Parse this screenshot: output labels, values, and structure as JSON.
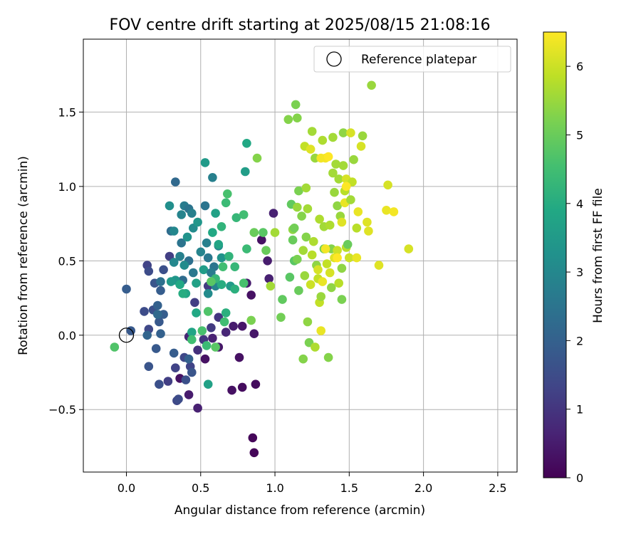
{
  "chart_data": {
    "type": "scatter",
    "title": "FOV centre drift starting at 2025/08/15 21:08:16",
    "xlabel": "Angular distance from reference (arcmin)",
    "ylabel": "Rotation from reference (arcmin)",
    "xlim": [
      -0.29,
      2.63
    ],
    "ylim": [
      -0.92,
      1.99
    ],
    "x_ticks": [
      0.0,
      0.5,
      1.0,
      1.5,
      2.0,
      2.5
    ],
    "x_tick_labels": [
      "0.0",
      "0.5",
      "1.0",
      "1.5",
      "2.0",
      "2.5"
    ],
    "y_ticks": [
      -0.5,
      0.0,
      0.5,
      1.0,
      1.5
    ],
    "y_tick_labels": [
      "−0.5",
      "0.0",
      "0.5",
      "1.0",
      "1.5"
    ],
    "grid": true,
    "legend": {
      "position": "upper right",
      "entries": [
        {
          "label": "Reference platepar",
          "marker": "open-circle"
        }
      ]
    },
    "reference_point": {
      "x": 0.0,
      "y": 0.0
    },
    "colorbar": {
      "label": "Hours from first FF file",
      "colormap": "viridis",
      "range": [
        0,
        6.5
      ],
      "ticks": [
        0,
        1,
        2,
        3,
        4,
        5,
        6
      ],
      "tick_labels": [
        "0",
        "1",
        "2",
        "3",
        "4",
        "5",
        "6"
      ]
    },
    "series": [
      {
        "color_by": "hours",
        "points": [
          [
            0.53,
            -0.16,
            0.3
          ],
          [
            0.36,
            -0.29,
            0.3
          ],
          [
            0.42,
            -0.4,
            0.5
          ],
          [
            0.48,
            -0.49,
            0.6
          ],
          [
            0.85,
            -0.69,
            0.1
          ],
          [
            0.86,
            -0.79,
            0.1
          ],
          [
            0.78,
            -0.35,
            0.2
          ],
          [
            0.71,
            -0.37,
            0.3
          ],
          [
            0.76,
            -0.15,
            0.3
          ],
          [
            0.87,
            -0.33,
            0.2
          ],
          [
            0.62,
            -0.08,
            0.4
          ],
          [
            0.58,
            -0.02,
            0.6
          ],
          [
            0.67,
            0.02,
            0.7
          ],
          [
            0.72,
            0.06,
            0.5
          ],
          [
            0.78,
            0.06,
            0.4
          ],
          [
            0.84,
            0.27,
            0.3
          ],
          [
            0.81,
            0.35,
            0.5
          ],
          [
            0.86,
            0.01,
            0.4
          ],
          [
            0.91,
            0.64,
            0.3
          ],
          [
            0.95,
            0.5,
            0.5
          ],
          [
            0.99,
            0.82,
            0.6
          ],
          [
            0.96,
            0.38,
            0.6
          ],
          [
            0.42,
            -0.01,
            0.7
          ],
          [
            0.48,
            -0.1,
            0.9
          ],
          [
            0.52,
            -0.03,
            1.0
          ],
          [
            0.57,
            0.05,
            1.1
          ],
          [
            0.62,
            0.12,
            1.0
          ],
          [
            0.46,
            0.22,
            1.2
          ],
          [
            0.55,
            0.33,
            1.1
          ],
          [
            0.43,
            -0.21,
            1.3
          ],
          [
            0.39,
            -0.15,
            1.4
          ],
          [
            0.33,
            -0.22,
            1.3
          ],
          [
            0.28,
            -0.31,
            1.2
          ],
          [
            0.34,
            -0.44,
            1.4
          ],
          [
            0.35,
            -0.43,
            1.5
          ],
          [
            0.22,
            -0.33,
            1.6
          ],
          [
            0.15,
            -0.21,
            1.7
          ],
          [
            0.2,
            -0.09,
            1.8
          ],
          [
            0.32,
            -0.12,
            1.9
          ],
          [
            0.42,
            -0.16,
            2.0
          ],
          [
            0.44,
            -0.25,
            1.7
          ],
          [
            0.4,
            -0.3,
            1.6
          ],
          [
            0.12,
            0.16,
            1.5
          ],
          [
            0.15,
            0.04,
            1.4
          ],
          [
            0.18,
            0.17,
            1.6
          ],
          [
            0.22,
            0.09,
            1.8
          ],
          [
            0.25,
            0.14,
            1.9
          ],
          [
            0.23,
            0.01,
            2.0
          ],
          [
            0.14,
            0.47,
            1.3
          ],
          [
            0.15,
            0.43,
            1.5
          ],
          [
            0.19,
            0.35,
            1.7
          ],
          [
            0.23,
            0.3,
            1.9
          ],
          [
            0.25,
            0.44,
            1.6
          ],
          [
            0.29,
            0.53,
            1.2
          ],
          [
            0.21,
            0.2,
            2.0
          ],
          [
            -0.0,
            0.31,
            1.9
          ],
          [
            0.03,
            0.03,
            1.8
          ],
          [
            0.14,
            0.0,
            2.1
          ],
          [
            0.21,
            0.14,
            2.2
          ],
          [
            0.23,
            0.36,
            2.4
          ],
          [
            0.3,
            0.7,
            2.3
          ],
          [
            0.33,
            1.03,
            2.2
          ],
          [
            0.37,
            0.62,
            2.5
          ],
          [
            0.38,
            0.37,
            2.3
          ],
          [
            0.42,
            0.5,
            2.4
          ],
          [
            0.45,
            0.42,
            2.6
          ],
          [
            0.39,
            0.87,
            2.7
          ],
          [
            0.42,
            0.85,
            2.5
          ],
          [
            0.44,
            0.82,
            2.8
          ],
          [
            0.37,
            0.81,
            2.9
          ],
          [
            0.32,
            0.7,
            3.0
          ],
          [
            0.29,
            0.87,
            3.2
          ],
          [
            0.45,
            0.72,
            3.1
          ],
          [
            0.41,
            0.66,
            3.3
          ],
          [
            0.48,
            0.76,
            3.4
          ],
          [
            0.36,
            0.53,
            2.8
          ],
          [
            0.32,
            0.49,
            3.0
          ],
          [
            0.39,
            0.47,
            3.1
          ],
          [
            0.33,
            0.37,
            3.4
          ],
          [
            0.3,
            0.36,
            3.5
          ],
          [
            0.4,
            0.28,
            3.8
          ],
          [
            0.38,
            0.28,
            4.0
          ],
          [
            0.36,
            0.34,
            3.9
          ],
          [
            0.47,
            0.35,
            3.7
          ],
          [
            0.52,
            0.44,
            3.6
          ],
          [
            0.5,
            0.56,
            2.9
          ],
          [
            0.54,
            0.62,
            2.8
          ],
          [
            0.55,
            0.52,
            2.6
          ],
          [
            0.59,
            0.46,
            2.5
          ],
          [
            0.62,
            0.6,
            3.0
          ],
          [
            0.64,
            0.52,
            3.3
          ],
          [
            0.57,
            0.42,
            2.7
          ],
          [
            0.55,
            0.28,
            3.1
          ],
          [
            0.6,
            0.33,
            2.9
          ],
          [
            0.53,
            0.87,
            2.5
          ],
          [
            0.58,
            1.06,
            2.8
          ],
          [
            0.53,
            1.16,
            3.5
          ],
          [
            0.6,
            0.82,
            3.7
          ],
          [
            0.64,
            0.73,
            4.2
          ],
          [
            0.67,
            0.89,
            4.4
          ],
          [
            0.68,
            0.95,
            4.6
          ],
          [
            0.58,
            0.69,
            3.9
          ],
          [
            0.62,
            0.61,
            3.8
          ],
          [
            0.65,
            0.46,
            4.5
          ],
          [
            0.69,
            0.53,
            4.2
          ],
          [
            0.7,
            0.33,
            3.5
          ],
          [
            0.73,
            0.46,
            4.3
          ],
          [
            0.73,
            0.31,
            4.1
          ],
          [
            0.64,
            0.34,
            4.0
          ],
          [
            0.6,
            0.38,
            4.3
          ],
          [
            0.57,
            0.36,
            4.8
          ],
          [
            0.51,
            0.03,
            4.6
          ],
          [
            0.54,
            -0.07,
            4.4
          ],
          [
            0.44,
            0.02,
            3.8
          ],
          [
            0.47,
            0.15,
            3.9
          ],
          [
            0.55,
            0.16,
            4.7
          ],
          [
            0.67,
            0.15,
            4.1
          ],
          [
            0.66,
            0.09,
            4.5
          ],
          [
            0.6,
            -0.08,
            4.8
          ],
          [
            0.44,
            -0.03,
            4.5
          ],
          [
            0.55,
            -0.33,
            3.7
          ],
          [
            -0.08,
            -0.08,
            4.7
          ],
          [
            0.74,
            0.79,
            4.3
          ],
          [
            0.79,
            0.81,
            4.5
          ],
          [
            0.79,
            0.35,
            4.6
          ],
          [
            0.81,
            0.58,
            4.4
          ],
          [
            0.8,
            1.1,
            3.6
          ],
          [
            0.81,
            1.29,
            3.9
          ],
          [
            0.84,
            0.1,
            5.2
          ],
          [
            0.86,
            0.69,
            5.0
          ],
          [
            0.88,
            1.19,
            5.3
          ],
          [
            0.92,
            0.69,
            4.8
          ],
          [
            0.94,
            0.57,
            5.0
          ],
          [
            0.97,
            0.33,
            5.6
          ],
          [
            1.0,
            0.69,
            5.6
          ],
          [
            1.04,
            0.12,
            5.1
          ],
          [
            1.05,
            0.24,
            4.9
          ],
          [
            1.09,
            1.45,
            5.3
          ],
          [
            1.1,
            0.39,
            4.8
          ],
          [
            1.11,
            0.88,
            4.9
          ],
          [
            1.12,
            0.71,
            5.4
          ],
          [
            1.12,
            0.64,
            5.0
          ],
          [
            1.13,
            0.5,
            4.8
          ],
          [
            1.13,
            0.72,
            5.1
          ],
          [
            1.14,
            1.55,
            5.2
          ],
          [
            1.15,
            1.46,
            5.3
          ],
          [
            1.15,
            0.51,
            5.2
          ],
          [
            1.15,
            0.86,
            5.5
          ],
          [
            1.16,
            0.3,
            5.0
          ],
          [
            1.16,
            0.97,
            5.2
          ],
          [
            1.18,
            0.8,
            5.3
          ],
          [
            1.19,
            -0.16,
            5.3
          ],
          [
            1.19,
            0.57,
            5.6
          ],
          [
            1.2,
            1.27,
            5.9
          ],
          [
            1.2,
            0.4,
            5.5
          ],
          [
            1.21,
            0.99,
            5.6
          ],
          [
            1.21,
            0.66,
            5.3
          ],
          [
            1.22,
            0.85,
            5.6
          ],
          [
            1.22,
            0.09,
            5.4
          ],
          [
            1.23,
            -0.05,
            5.2
          ],
          [
            1.24,
            0.34,
            6.0
          ],
          [
            1.24,
            1.25,
            6.2
          ],
          [
            1.25,
            1.37,
            5.6
          ],
          [
            1.25,
            0.54,
            5.8
          ],
          [
            1.26,
            0.63,
            5.7
          ],
          [
            1.27,
            1.19,
            5.5
          ],
          [
            1.27,
            -0.08,
            5.7
          ],
          [
            1.28,
            0.47,
            5.4
          ],
          [
            1.29,
            0.38,
            5.9
          ],
          [
            1.29,
            0.44,
            6.1
          ],
          [
            1.3,
            0.22,
            5.9
          ],
          [
            1.3,
            0.78,
            5.7
          ],
          [
            1.31,
            0.03,
            6.3
          ],
          [
            1.31,
            1.19,
            6.4
          ],
          [
            1.31,
            0.26,
            5.5
          ],
          [
            1.32,
            1.31,
            5.7
          ],
          [
            1.32,
            0.36,
            6.3
          ],
          [
            1.33,
            0.73,
            5.6
          ],
          [
            1.33,
            0.58,
            5.1
          ],
          [
            1.34,
            1.19,
            6.4
          ],
          [
            1.35,
            0.48,
            5.9
          ],
          [
            1.36,
            -0.15,
            5.3
          ],
          [
            1.37,
            0.42,
            6.1
          ],
          [
            1.37,
            0.74,
            5.7
          ],
          [
            1.38,
            0.32,
            5.4
          ],
          [
            1.38,
            0.58,
            5.3
          ],
          [
            1.39,
            1.09,
            5.6
          ],
          [
            1.39,
            1.33,
            5.6
          ],
          [
            1.4,
            0.96,
            5.5
          ],
          [
            1.4,
            0.52,
            6.2
          ],
          [
            1.41,
            1.15,
            5.6
          ],
          [
            1.42,
            0.87,
            5.4
          ],
          [
            1.42,
            0.57,
            6.0
          ],
          [
            1.43,
            0.35,
            5.8
          ],
          [
            1.43,
            1.05,
            5.6
          ],
          [
            1.44,
            0.8,
            5.5
          ],
          [
            1.45,
            0.45,
            5.4
          ],
          [
            1.45,
            0.24,
            5.2
          ],
          [
            1.45,
            0.76,
            6.2
          ],
          [
            1.46,
            1.36,
            5.4
          ],
          [
            1.46,
            1.14,
            5.6
          ],
          [
            1.47,
            0.89,
            6.3
          ],
          [
            1.47,
            0.97,
            5.8
          ],
          [
            1.48,
            1.05,
            6.1
          ],
          [
            1.48,
            0.59,
            5.8
          ],
          [
            1.49,
            0.61,
            5.0
          ],
          [
            1.5,
            0.52,
            6.0
          ],
          [
            1.51,
            1.36,
            6.1
          ],
          [
            1.51,
            0.91,
            5.6
          ],
          [
            1.52,
            1.03,
            5.9
          ],
          [
            1.53,
            1.18,
            5.5
          ],
          [
            1.55,
            0.72,
            5.8
          ],
          [
            1.55,
            0.52,
            6.3
          ],
          [
            1.56,
            0.83,
            6.3
          ],
          [
            1.58,
            1.27,
            6.1
          ],
          [
            1.59,
            1.34,
            5.5
          ],
          [
            1.62,
            0.76,
            6.2
          ],
          [
            1.63,
            0.7,
            6.2
          ],
          [
            1.65,
            1.68,
            5.5
          ],
          [
            1.7,
            0.47,
            6.2
          ],
          [
            1.75,
            0.84,
            6.3
          ],
          [
            1.76,
            1.01,
            6.1
          ],
          [
            1.8,
            0.83,
            6.4
          ],
          [
            1.9,
            0.58,
            6.1
          ],
          [
            1.34,
            0.58,
            6.4
          ],
          [
            1.36,
            1.2,
            6.5
          ],
          [
            1.42,
            0.52,
            6.5
          ],
          [
            1.48,
            1.0,
            6.5
          ]
        ]
      }
    ]
  }
}
